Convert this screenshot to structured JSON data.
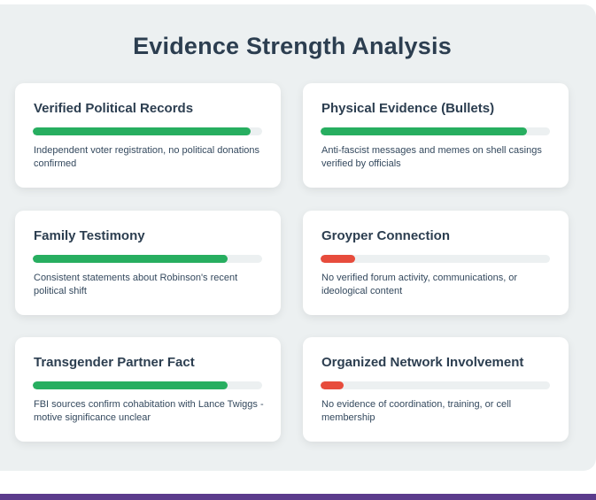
{
  "title": "Evidence Strength Analysis",
  "colors": {
    "strong": "#27ae60",
    "weak": "#e74c3c",
    "track": "#ecf0f1",
    "footer": "#5b3b8c"
  },
  "cards": [
    {
      "title": "Verified Political Records",
      "strength": 0.95,
      "level": "strong",
      "description": "Independent voter registration, no political donations confirmed"
    },
    {
      "title": "Physical Evidence (Bullets)",
      "strength": 0.9,
      "level": "strong",
      "description": "Anti-fascist messages and memes on shell casings verified by officials"
    },
    {
      "title": "Family Testimony",
      "strength": 0.85,
      "level": "strong",
      "description": "Consistent statements about Robinson's recent political shift"
    },
    {
      "title": "Groyper Connection",
      "strength": 0.15,
      "level": "weak",
      "description": "No verified forum activity, communications, or ideological content"
    },
    {
      "title": "Transgender Partner Fact",
      "strength": 0.85,
      "level": "strong",
      "description": "FBI sources confirm cohabitation with Lance Twiggs - motive significance unclear"
    },
    {
      "title": "Organized Network Involvement",
      "strength": 0.1,
      "level": "weak",
      "description": "No evidence of coordination, training, or cell membership"
    }
  ]
}
